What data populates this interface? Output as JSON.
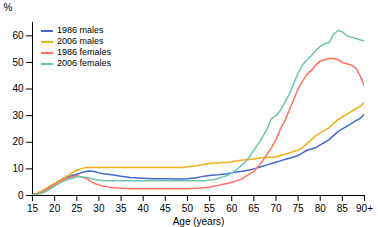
{
  "chart_data": {
    "type": "line",
    "x": [
      15,
      16,
      17,
      18,
      19,
      20,
      21,
      22,
      23,
      24,
      25,
      26,
      27,
      28,
      29,
      30,
      31,
      32,
      33,
      34,
      35,
      36,
      37,
      38,
      39,
      40,
      41,
      42,
      43,
      44,
      45,
      46,
      47,
      48,
      49,
      50,
      51,
      52,
      53,
      54,
      55,
      56,
      57,
      58,
      59,
      60,
      61,
      62,
      63,
      64,
      65,
      66,
      67,
      68,
      69,
      70,
      71,
      72,
      73,
      74,
      75,
      76,
      77,
      78,
      79,
      80,
      81,
      82,
      83,
      84,
      85,
      86,
      87,
      88,
      89,
      90
    ],
    "series": [
      {
        "name": "1986 males",
        "values": [
          0.3,
          0.8,
          1.5,
          2.5,
          3.5,
          4.5,
          5.5,
          6.5,
          7.0,
          7.5,
          8.0,
          8.5,
          9.0,
          9.2,
          9.0,
          8.5,
          8.2,
          8.0,
          7.8,
          7.5,
          7.2,
          7.0,
          6.8,
          6.7,
          6.6,
          6.5,
          6.4,
          6.3,
          6.3,
          6.3,
          6.3,
          6.3,
          6.2,
          6.2,
          6.2,
          6.3,
          6.5,
          6.7,
          7.0,
          7.3,
          7.5,
          7.7,
          7.8,
          8.0,
          8.2,
          8.5,
          8.8,
          9.0,
          9.3,
          9.6,
          10.0,
          10.5,
          11.0,
          11.5,
          12.0,
          12.5,
          13.0,
          13.5,
          14.0,
          14.5,
          15.0,
          16.0,
          17.0,
          17.5,
          18.0,
          19.0,
          20.0,
          21.0,
          22.5,
          24.0,
          25.0,
          26.0,
          27.0,
          28.0,
          29.0,
          30.5
        ]
      },
      {
        "name": "2006 males",
        "values": [
          0.3,
          0.8,
          1.5,
          2.5,
          3.5,
          4.5,
          5.5,
          6.5,
          7.5,
          8.5,
          9.5,
          10.0,
          10.5,
          10.5,
          10.5,
          10.5,
          10.5,
          10.5,
          10.5,
          10.5,
          10.5,
          10.5,
          10.5,
          10.5,
          10.5,
          10.5,
          10.5,
          10.5,
          10.5,
          10.5,
          10.5,
          10.5,
          10.5,
          10.5,
          10.5,
          10.8,
          11.0,
          11.2,
          11.5,
          11.8,
          12.0,
          12.2,
          12.3,
          12.4,
          12.5,
          12.7,
          13.0,
          13.2,
          13.4,
          13.5,
          13.7,
          14.0,
          14.2,
          14.3,
          14.4,
          14.5,
          15.0,
          15.5,
          16.0,
          16.5,
          17.0,
          18.0,
          19.5,
          21.0,
          22.5,
          23.5,
          24.5,
          25.5,
          27.0,
          28.5,
          29.5,
          30.5,
          31.5,
          32.5,
          33.5,
          35.0
        ]
      },
      {
        "name": "1986 females",
        "values": [
          0.3,
          0.5,
          1.0,
          2.0,
          3.0,
          4.0,
          5.0,
          6.0,
          6.5,
          7.0,
          7.5,
          7.0,
          6.5,
          5.5,
          4.5,
          4.0,
          3.5,
          3.2,
          3.0,
          2.8,
          2.7,
          2.6,
          2.5,
          2.5,
          2.5,
          2.5,
          2.5,
          2.5,
          2.5,
          2.5,
          2.5,
          2.5,
          2.5,
          2.5,
          2.5,
          2.5,
          2.6,
          2.7,
          2.8,
          3.0,
          3.2,
          3.5,
          3.8,
          4.2,
          4.5,
          5.0,
          5.5,
          6.0,
          7.0,
          8.0,
          9.0,
          11.0,
          13.0,
          15.5,
          18.0,
          21.0,
          25.0,
          28.0,
          32.0,
          36.0,
          40.0,
          43.0,
          45.5,
          47.0,
          49.0,
          50.5,
          51.0,
          51.5,
          51.5,
          51.0,
          50.0,
          49.5,
          49.0,
          48.0,
          45.0,
          41.0
        ]
      },
      {
        "name": "2006 females",
        "values": [
          0.2,
          0.4,
          0.8,
          1.5,
          2.5,
          3.5,
          4.5,
          5.5,
          6.0,
          6.5,
          7.0,
          7.0,
          6.8,
          6.5,
          6.0,
          5.8,
          5.5,
          5.5,
          5.5,
          5.5,
          5.5,
          5.5,
          5.5,
          5.5,
          5.5,
          5.5,
          5.5,
          5.5,
          5.5,
          5.5,
          5.5,
          5.5,
          5.5,
          5.5,
          5.5,
          5.5,
          5.5,
          5.5,
          5.5,
          5.5,
          5.8,
          6.0,
          6.5,
          7.0,
          7.5,
          8.5,
          9.5,
          11.0,
          12.5,
          14.5,
          17.0,
          19.5,
          22.0,
          25.0,
          29.0,
          30.0,
          32.0,
          35.0,
          38.0,
          42.0,
          46.0,
          49.0,
          51.0,
          52.5,
          54.5,
          56.0,
          57.0,
          57.5,
          60.5,
          62.0,
          61.5,
          60.0,
          59.5,
          59.0,
          58.5,
          58.0
        ]
      }
    ],
    "xlabel": "Age (years)",
    "ylabel": "%",
    "xlim": [
      15,
      90
    ],
    "ylim": [
      0,
      65
    ],
    "xticks": [
      15,
      20,
      25,
      30,
      35,
      40,
      45,
      50,
      55,
      60,
      65,
      70,
      75,
      80,
      85,
      {
        "value": 90,
        "label": "90+"
      }
    ],
    "yticks": [
      0,
      10,
      20,
      30,
      40,
      50,
      60
    ],
    "grid": false,
    "legend": "upper left"
  }
}
